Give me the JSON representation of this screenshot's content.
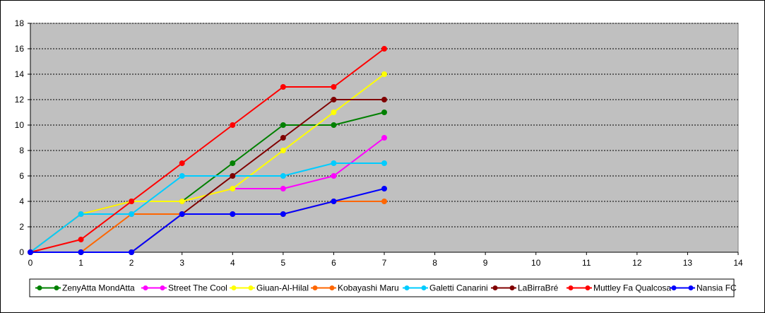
{
  "chart_data": {
    "type": "line",
    "title": "",
    "xlabel": "",
    "ylabel": "",
    "xlim": [
      0,
      14
    ],
    "ylim": [
      0,
      18
    ],
    "x_ticks": [
      0,
      1,
      2,
      3,
      4,
      5,
      6,
      7,
      8,
      9,
      10,
      11,
      12,
      13,
      14
    ],
    "y_ticks": [
      0,
      2,
      4,
      6,
      8,
      10,
      12,
      14,
      16,
      18
    ],
    "grid": "horizontal dashed",
    "plot_background": "#c0c0c0",
    "legend_position": "bottom",
    "x": [
      0,
      1,
      2,
      3,
      4,
      5,
      6,
      7
    ],
    "series": [
      {
        "name": "ZenyAtta MondAtta",
        "color": "#008000",
        "values": [
          0,
          3,
          4,
          4,
          7,
          10,
          10,
          11
        ]
      },
      {
        "name": "Street The Cool",
        "color": "#ff00ff",
        "values": [
          0,
          3,
          4,
          4,
          5,
          5,
          6,
          9
        ]
      },
      {
        "name": "Giuan-Al-Hilal",
        "color": "#ffff00",
        "values": [
          0,
          3,
          4,
          4,
          5,
          8,
          11,
          14
        ]
      },
      {
        "name": "Kobayashi Maru",
        "color": "#ff6600",
        "values": [
          0,
          0,
          3,
          3,
          3,
          3,
          4,
          4
        ]
      },
      {
        "name": "Galetti Canarini",
        "color": "#00ccff",
        "values": [
          0,
          3,
          3,
          6,
          6,
          6,
          7,
          7
        ]
      },
      {
        "name": "LaBirraBré",
        "color": "#800000",
        "values": [
          0,
          0,
          0,
          3,
          6,
          9,
          12,
          12
        ]
      },
      {
        "name": "Muttley Fa Qualcosa",
        "color": "#ff0000",
        "values": [
          0,
          1,
          4,
          7,
          10,
          13,
          13,
          16
        ]
      },
      {
        "name": "Nansia FC",
        "color": "#0000ff",
        "values": [
          0,
          0,
          0,
          3,
          3,
          3,
          4,
          5
        ]
      }
    ]
  }
}
